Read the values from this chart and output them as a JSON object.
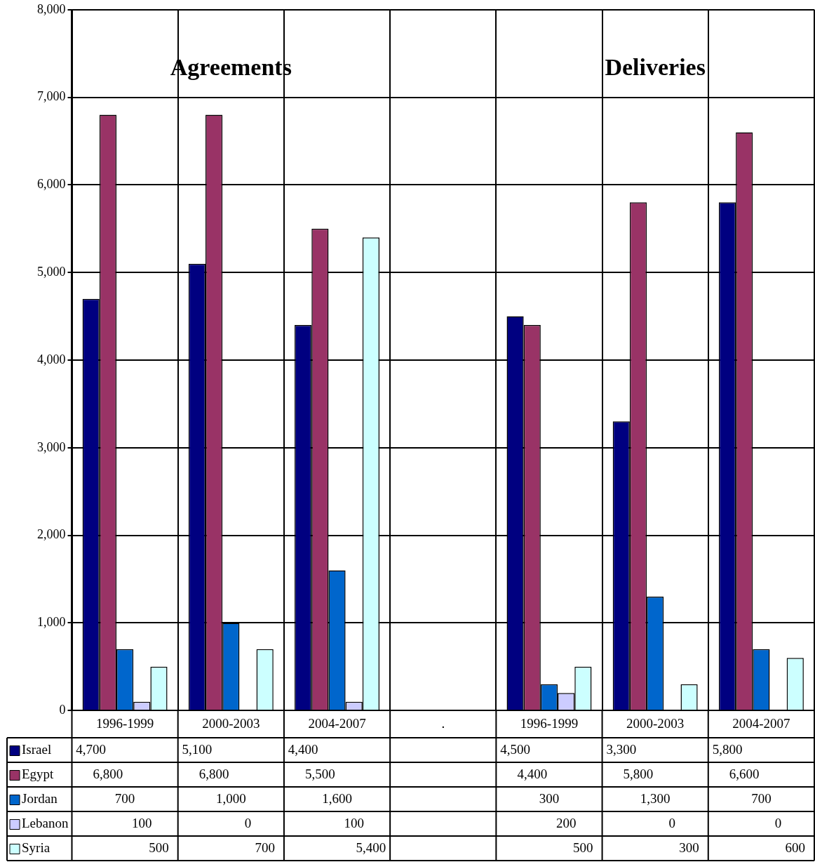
{
  "chart_data": {
    "type": "bar",
    "categories": [
      "1996-1999",
      "2000-2003",
      "2004-2007",
      ".",
      "1996-1999",
      "2000-2003",
      "2004-2007"
    ],
    "series": [
      {
        "name": "Israel",
        "color": "#000080",
        "values": [
          4700,
          5100,
          4400,
          null,
          4500,
          3300,
          5800
        ],
        "value_labels": [
          "4,700",
          "5,100",
          "4,400",
          null,
          "4,500",
          "3,300",
          "5,800"
        ]
      },
      {
        "name": "Egypt",
        "color": "#993366",
        "values": [
          6800,
          6800,
          5500,
          null,
          4400,
          5800,
          6600
        ],
        "value_labels": [
          "6,800",
          "6,800",
          "5,500",
          null,
          "4,400",
          "5,800",
          "6,600"
        ]
      },
      {
        "name": "Jordan",
        "color": "#0066cc",
        "values": [
          700,
          1000,
          1600,
          null,
          300,
          1300,
          700
        ],
        "value_labels": [
          "700",
          "1,000",
          "1,600",
          null,
          "300",
          "1,300",
          "700"
        ]
      },
      {
        "name": "Lebanon",
        "color": "#ccccff",
        "values": [
          100,
          0,
          100,
          null,
          200,
          0,
          0
        ],
        "value_labels": [
          "100",
          "0",
          "100",
          null,
          "200",
          "0",
          "0"
        ]
      },
      {
        "name": "Syria",
        "color": "#ccffff",
        "values": [
          500,
          700,
          5400,
          null,
          500,
          300,
          600
        ],
        "value_labels": [
          "500",
          "700",
          "5,400",
          null,
          "500",
          "300",
          "600"
        ]
      }
    ],
    "ylim": [
      0,
      8000
    ],
    "yticks": [
      {
        "value": 0,
        "label": "0"
      },
      {
        "value": 1000,
        "label": "1,000"
      },
      {
        "value": 2000,
        "label": "2,000"
      },
      {
        "value": 3000,
        "label": "3,000"
      },
      {
        "value": 4000,
        "label": "4,000"
      },
      {
        "value": 5000,
        "label": "5,000"
      },
      {
        "value": 6000,
        "label": "6,000"
      },
      {
        "value": 7000,
        "label": "7,000"
      },
      {
        "value": 8000,
        "label": "8,000"
      }
    ],
    "annotations": [
      "Agreements",
      "Deliveries"
    ],
    "grid": true,
    "legend": "bottom"
  }
}
